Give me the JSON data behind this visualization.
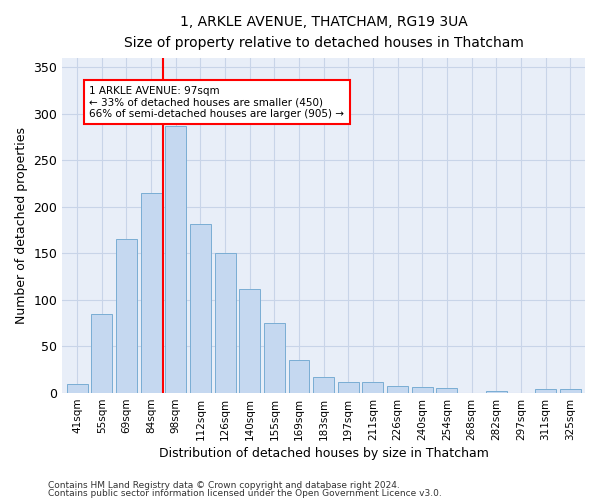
{
  "title": "1, ARKLE AVENUE, THATCHAM, RG19 3UA",
  "subtitle": "Size of property relative to detached houses in Thatcham",
  "xlabel": "Distribution of detached houses by size in Thatcham",
  "ylabel": "Number of detached properties",
  "categories": [
    "41sqm",
    "55sqm",
    "69sqm",
    "84sqm",
    "98sqm",
    "112sqm",
    "126sqm",
    "140sqm",
    "155sqm",
    "169sqm",
    "183sqm",
    "197sqm",
    "211sqm",
    "226sqm",
    "240sqm",
    "254sqm",
    "268sqm",
    "282sqm",
    "297sqm",
    "311sqm",
    "325sqm"
  ],
  "values": [
    10,
    85,
    165,
    215,
    287,
    182,
    150,
    112,
    75,
    35,
    17,
    12,
    12,
    8,
    6,
    5,
    0,
    2,
    0,
    4,
    4
  ],
  "bar_color": "#c5d8f0",
  "bar_edgecolor": "#7aadd4",
  "grid_color": "#c8d4e8",
  "background_color": "#e8eef8",
  "red_line_index": 4,
  "annotation_line1": "1 ARKLE AVENUE: 97sqm",
  "annotation_line2": "← 33% of detached houses are smaller (450)",
  "annotation_line3": "66% of semi-detached houses are larger (905) →",
  "annotation_box_color": "white",
  "annotation_box_edgecolor": "red",
  "ylim": [
    0,
    360
  ],
  "yticks": [
    0,
    50,
    100,
    150,
    200,
    250,
    300,
    350
  ],
  "footer1": "Contains HM Land Registry data © Crown copyright and database right 2024.",
  "footer2": "Contains public sector information licensed under the Open Government Licence v3.0."
}
